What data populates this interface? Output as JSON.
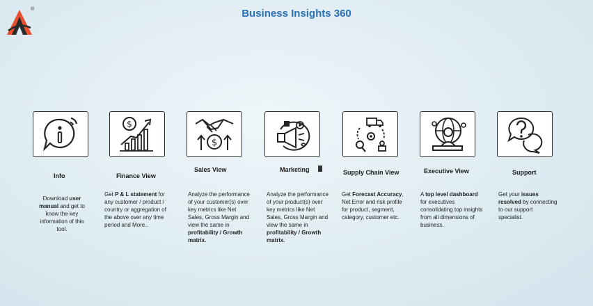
{
  "app": {
    "title": "Business Insights 360",
    "logo_registered": "®"
  },
  "cards": [
    {
      "id": "info",
      "icon": "info-chat-icon",
      "title": "Info",
      "desc": [
        {
          "t": "Download ",
          "b": false
        },
        {
          "t": "user manual",
          "b": true
        },
        {
          "t": " and get to know the key information of this tool.",
          "b": false
        }
      ]
    },
    {
      "id": "finance",
      "icon": "finance-growth-icon",
      "title": "Finance View",
      "desc": [
        {
          "t": "Get ",
          "b": false
        },
        {
          "t": " P & L statement",
          "b": true
        },
        {
          "t": " for any customer / product / country or aggregation of the above over any time period and More..",
          "b": false
        }
      ]
    },
    {
      "id": "sales",
      "icon": "handshake-dollar-icon",
      "title": "Sales View",
      "desc": [
        {
          "t": "Analyze the performance of your customer(s) over key metrics like Net Sales, Gross Margin and view the same in ",
          "b": false
        },
        {
          "t": "profitability / Growth matrix.",
          "b": true
        }
      ]
    },
    {
      "id": "marketing",
      "icon": "megaphone-media-icon",
      "title": "Marketing",
      "desc": [
        {
          "t": "Analyze the performance of your product(s) over key metrics like Net Sales, Gross Margin and view the same in ",
          "b": false
        },
        {
          "t": "profitability / Growth matrix.",
          "b": true
        }
      ]
    },
    {
      "id": "supply",
      "icon": "supply-chain-icon",
      "title": "Supply Chain View",
      "desc": [
        {
          "t": "Get ",
          "b": false
        },
        {
          "t": "Forecast Accuracy",
          "b": true
        },
        {
          "t": ", Net Error and risk profile for product, segment, category, customer etc.",
          "b": false
        }
      ]
    },
    {
      "id": "executive",
      "icon": "executive-globe-icon",
      "title": "Executive View",
      "desc": [
        {
          "t": "A ",
          "b": false
        },
        {
          "t": "top level dashboard",
          "b": true
        },
        {
          "t": " for executives consolidating top insights from all dimensions of business.",
          "b": false
        }
      ]
    },
    {
      "id": "support",
      "icon": "question-chat-icon",
      "title": "Support",
      "desc": [
        {
          "t": "Get your ",
          "b": false
        },
        {
          "t": "issues resolved",
          "b": true
        },
        {
          "t": " by connecting to our support specialist.",
          "b": false
        }
      ]
    }
  ]
}
